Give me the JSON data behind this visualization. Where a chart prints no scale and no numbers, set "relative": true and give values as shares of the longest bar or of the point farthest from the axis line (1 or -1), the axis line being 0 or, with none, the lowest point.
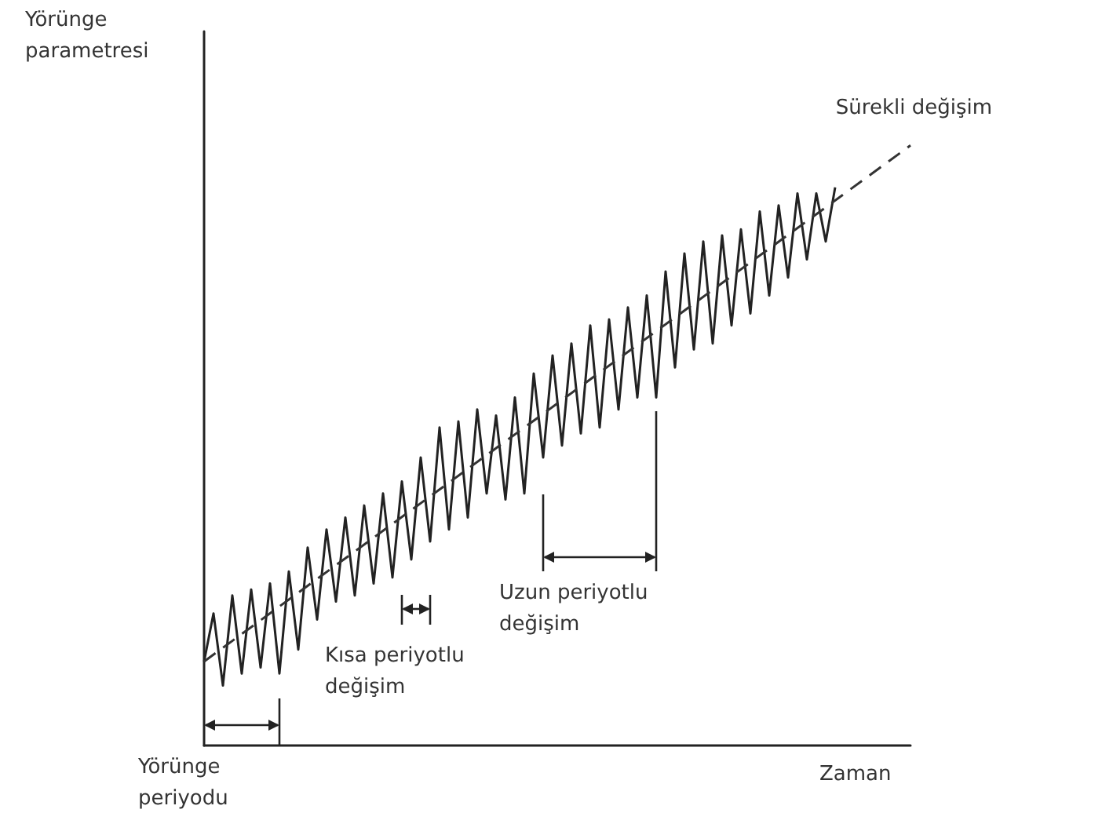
{
  "chart_data": {
    "type": "line",
    "relative": true,
    "xlabel": "Zaman",
    "ylabel": "Yörünge parametresi",
    "categories": [
      null,
      null,
      null,
      null,
      null,
      null,
      null,
      null,
      null,
      null,
      null,
      null,
      null,
      null,
      null,
      null,
      null,
      null,
      null,
      null,
      null,
      null,
      null,
      null,
      null,
      null,
      null,
      null,
      null,
      null,
      null,
      null,
      null,
      null,
      null,
      null,
      null,
      null,
      null,
      null,
      null,
      null,
      null,
      null,
      null,
      null,
      null,
      null,
      null,
      null,
      null,
      null,
      null,
      null,
      null,
      null,
      null,
      null,
      null,
      null,
      null,
      null,
      null,
      null,
      null,
      null,
      null,
      null,
      null,
      null,
      null,
      null,
      null,
      null,
      null,
      null
    ],
    "series": [
      {
        "color": "#222222",
        "line_style": "solid",
        "values": [
          0.14,
          0.22,
          0.1,
          0.25,
          0.12,
          0.26,
          0.13,
          0.27,
          0.12,
          0.29,
          0.16,
          0.33,
          0.21,
          0.36,
          0.24,
          0.38,
          0.25,
          0.4,
          0.27,
          0.42,
          0.28,
          0.44,
          0.31,
          0.48,
          0.34,
          0.53,
          0.36,
          0.54,
          0.38,
          0.56,
          0.42,
          0.55,
          0.41,
          0.58,
          0.42,
          0.62,
          0.48,
          0.65,
          0.5,
          0.67,
          0.52,
          0.7,
          0.53,
          0.71,
          0.56,
          0.73,
          0.58,
          0.75,
          0.58,
          0.79,
          0.63,
          0.82,
          0.66,
          0.84,
          0.67,
          0.85,
          0.7,
          0.86,
          0.72,
          0.89,
          0.75,
          0.9,
          0.78,
          0.92,
          0.81,
          0.92,
          0.84,
          0.93,
          null,
          null,
          null,
          null,
          null,
          null,
          null,
          null
        ]
      },
      {
        "name": "Sürekli değişim",
        "color": "#333333",
        "line_style": "dashed",
        "values": [
          0.14,
          null,
          null,
          null,
          null,
          null,
          null,
          null,
          null,
          null,
          null,
          null,
          null,
          null,
          null,
          null,
          null,
          null,
          null,
          null,
          null,
          null,
          null,
          null,
          null,
          null,
          null,
          null,
          null,
          null,
          null,
          null,
          null,
          null,
          null,
          null,
          null,
          null,
          null,
          null,
          null,
          null,
          null,
          null,
          null,
          null,
          null,
          null,
          null,
          null,
          null,
          null,
          null,
          null,
          null,
          null,
          null,
          null,
          null,
          null,
          null,
          null,
          null,
          null,
          null,
          null,
          null,
          null,
          null,
          null,
          null,
          null,
          null,
          null,
          null,
          1.0
        ]
      }
    ],
    "annotations": [
      "Yörünge periyodu",
      "Kısa periyotlu değişim",
      "Uzun periyotlu değişim"
    ],
    "marker": "none",
    "grid": false,
    "legend": false
  }
}
